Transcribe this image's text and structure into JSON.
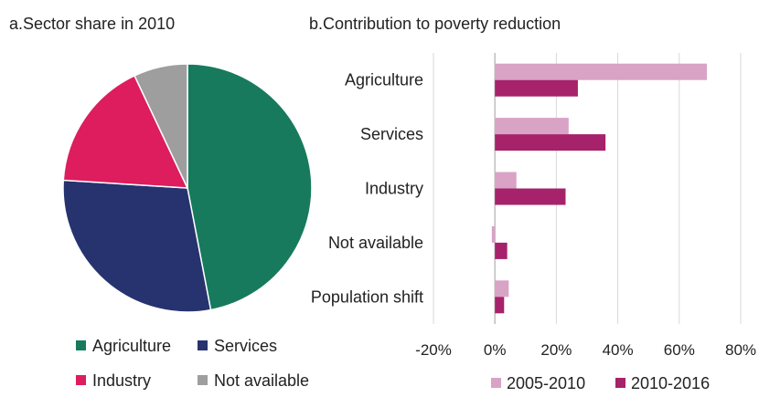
{
  "chart_data": [
    {
      "type": "pie",
      "title": "a.Sector share in 2010",
      "slices": [
        {
          "label": "Agriculture",
          "value": 47,
          "color": "#177a5c"
        },
        {
          "label": "Services",
          "value": 29,
          "color": "#26336e"
        },
        {
          "label": "Industry",
          "value": 17,
          "color": "#dd1d5e"
        },
        {
          "label": "Not available",
          "value": 7,
          "color": "#9e9e9e"
        }
      ],
      "legend": {
        "placement": "bottom",
        "rows": [
          [
            "Agriculture",
            "Services"
          ],
          [
            "Industry",
            "Not available"
          ]
        ]
      }
    },
    {
      "type": "bar",
      "orientation": "horizontal",
      "title": "b.Contribution to poverty reduction",
      "categories": [
        "Agriculture",
        "Services",
        "Industry",
        "Not available",
        "Population shift"
      ],
      "series": [
        {
          "name": "2005-2010",
          "color": "#d9a3c5",
          "values": [
            69,
            24,
            7,
            -1,
            4.5
          ]
        },
        {
          "name": "2010-2016",
          "color": "#a6226b",
          "values": [
            27,
            36,
            23,
            4,
            3
          ]
        }
      ],
      "xlim": [
        -20,
        80
      ],
      "xticks": [
        "-20%",
        "0%",
        "20%",
        "40%",
        "60%",
        "80%"
      ],
      "xtick_values": [
        -20,
        0,
        20,
        40,
        60,
        80
      ],
      "grid": "vertical",
      "legend": {
        "placement": "bottom"
      }
    }
  ]
}
